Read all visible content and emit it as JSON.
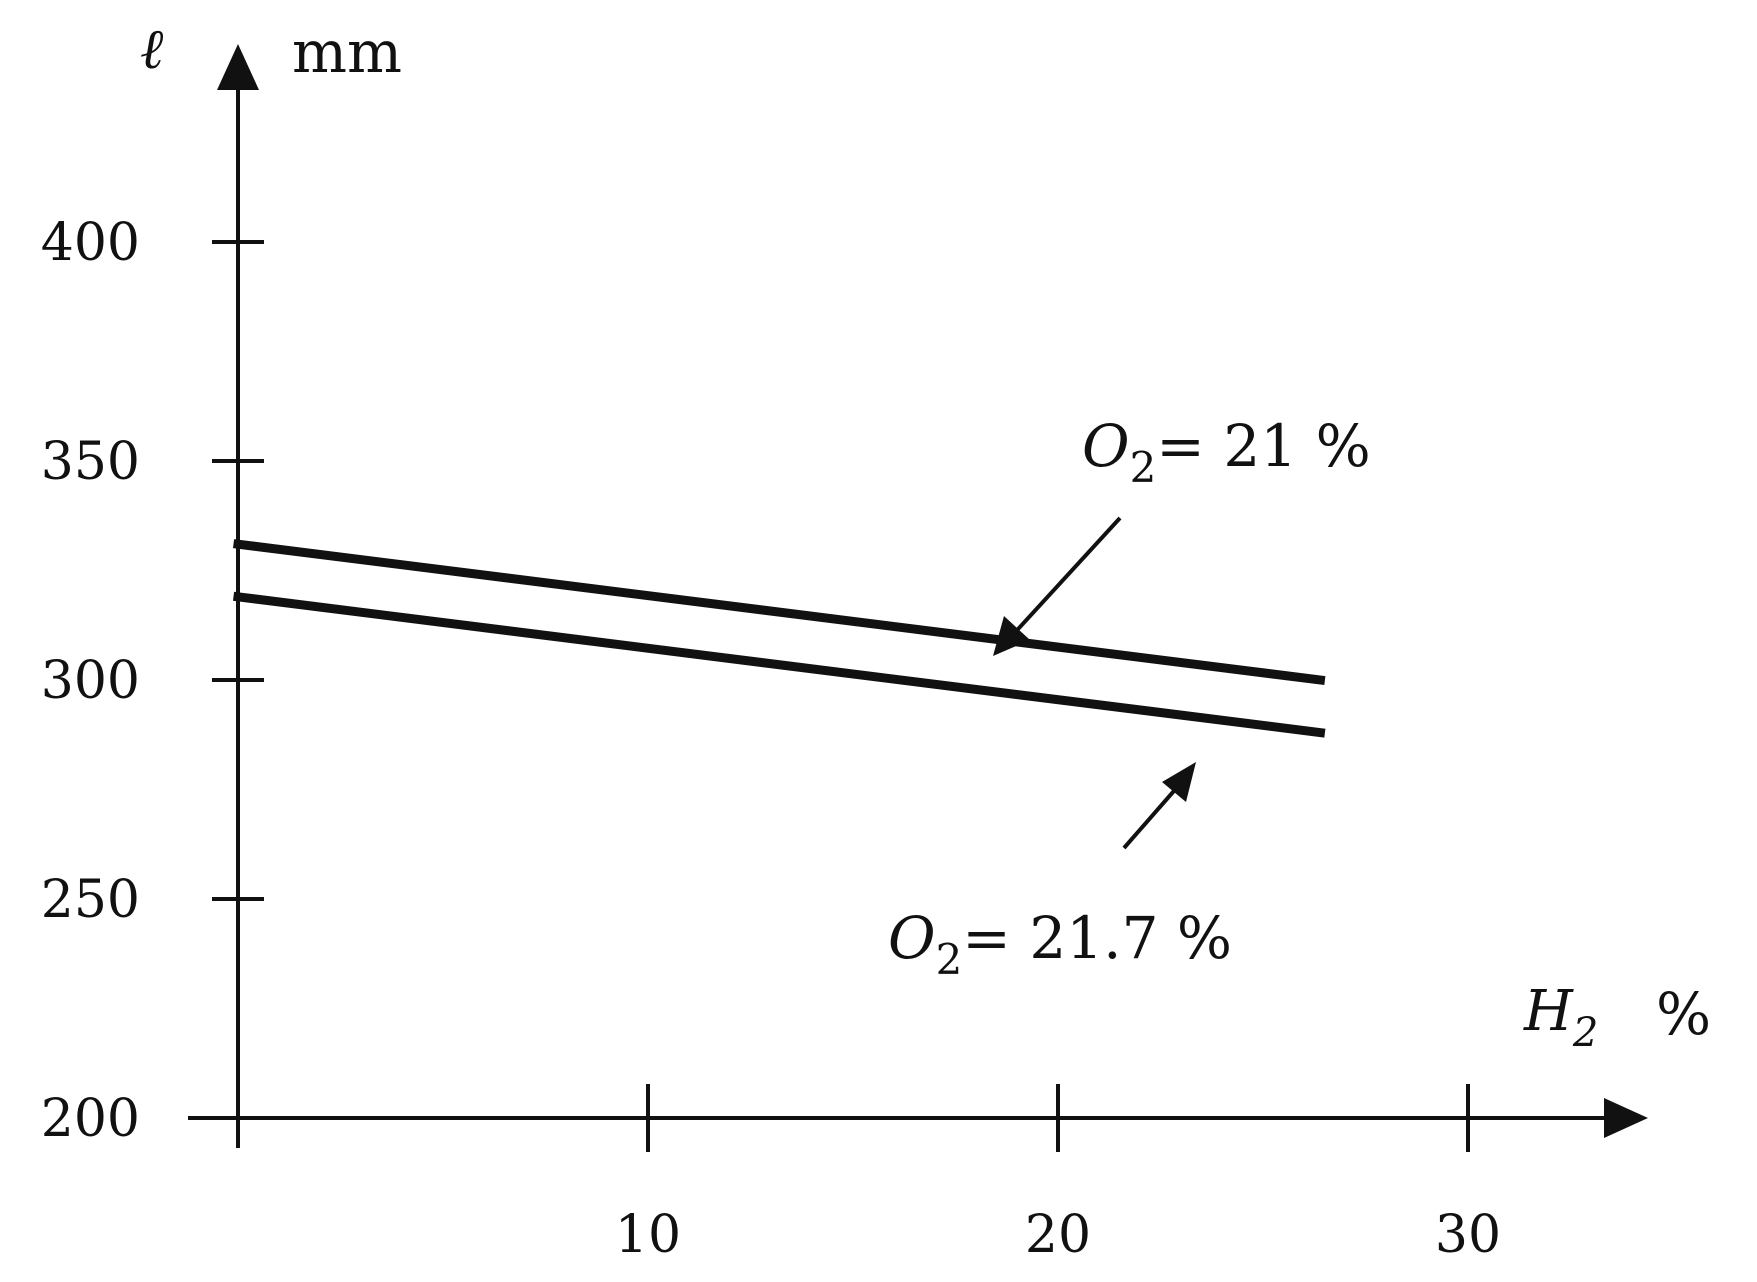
{
  "chart_data": {
    "type": "line",
    "title": "",
    "xlabel": "H",
    "xlabel_sub": "2",
    "xunit": "%",
    "ylabel": "ℓ",
    "yunit": "mm",
    "xlim": [
      0,
      40
    ],
    "ylim": [
      200,
      450
    ],
    "x_ticks": [
      10,
      20,
      30
    ],
    "x_tick_labels": [
      "10",
      "20",
      "30"
    ],
    "y_ticks": [
      200,
      250,
      300,
      350,
      400
    ],
    "y_tick_labels": [
      "200",
      "250",
      "300",
      "350",
      "400"
    ],
    "grid": false,
    "series": [
      {
        "name": "O2 = 21 %",
        "x": [
          0,
          26.4
        ],
        "y": [
          331,
          300
        ]
      },
      {
        "name": "O2 = 21.7 %",
        "x": [
          0,
          26.4
        ],
        "y": [
          319,
          288
        ]
      }
    ],
    "annotations": [
      {
        "symbol": "O",
        "sub": "2",
        "text": "= 21 %"
      },
      {
        "symbol": "O",
        "sub": "2",
        "text": "= 21.7 %"
      }
    ]
  }
}
